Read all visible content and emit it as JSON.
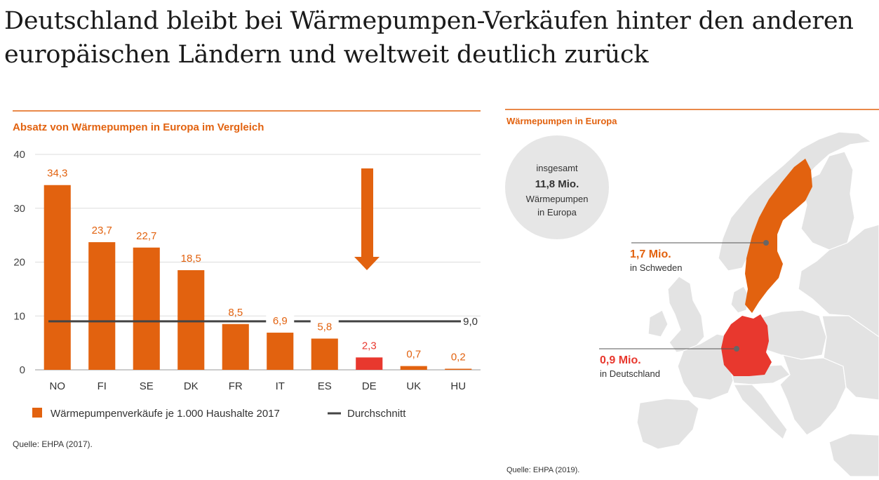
{
  "headline": "Deutschland bleibt bei Wärmepumpen-Verkäufen hinter den anderen europäischen Ländern und weltweit deutlich zurück",
  "colors": {
    "accent": "#e2620f",
    "highlight": "#e8382e",
    "average_line": "#444444",
    "map_land": "#e3e3e3",
    "circle": "#e6e6e6"
  },
  "chart_data": [
    {
      "type": "bar",
      "title": "Absatz von Wärmepumpen in Europa im Vergleich",
      "categories": [
        "NO",
        "FI",
        "SE",
        "DK",
        "FR",
        "IT",
        "ES",
        "DE",
        "UK",
        "HU"
      ],
      "values": [
        34.3,
        23.7,
        22.7,
        18.5,
        8.5,
        6.9,
        5.8,
        2.3,
        0.7,
        0.2
      ],
      "value_labels": [
        "34,3",
        "23,7",
        "22,7",
        "18,5",
        "8,5",
        "6,9",
        "5,8",
        "2,3",
        "0,7",
        "0,2"
      ],
      "highlight_category": "DE",
      "average": 9.0,
      "average_label": "9,0",
      "ylim": [
        0,
        40
      ],
      "yticks": [
        "0",
        "10",
        "20",
        "30",
        "40"
      ],
      "grid": true,
      "legend": {
        "position": "bottom-left",
        "bar_label": "Wärmepumpenverkäufe je 1.000 Haushalte 2017",
        "line_label": "Durchschnitt"
      },
      "source": "Quelle: EHPA (2017).",
      "annotation": "arrow pointing down at DE"
    }
  ],
  "map": {
    "title": "Wärmepumpen in Europa",
    "total": {
      "line1": "insgesamt",
      "value": "11,8 Mio.",
      "line3": "Wärmepumpen",
      "line4": "in Europa"
    },
    "callouts": [
      {
        "value": "1,7 Mio.",
        "label": "in Schweden",
        "country": "Schweden"
      },
      {
        "value": "0,9 Mio.",
        "label": "in Deutschland",
        "country": "Deutschland"
      }
    ],
    "source": "Quelle: EHPA (2019)."
  }
}
